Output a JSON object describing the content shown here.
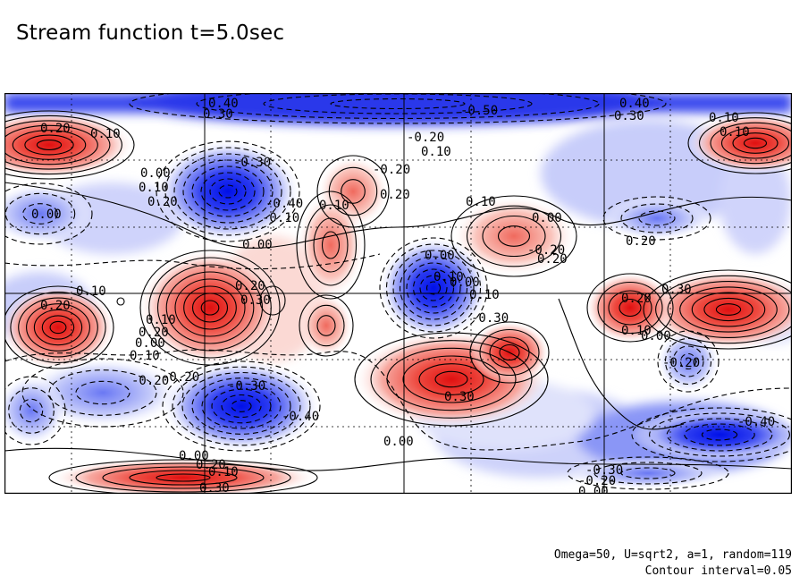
{
  "title": "Stream function t=5.0sec",
  "footer": {
    "params": "Omega=50, U=sqrt2, a=1, random=119",
    "interval": "Contour interval=0.05"
  },
  "colors": {
    "positive": "#e8201c",
    "negative": "#1020e0",
    "background": "#ffffff",
    "grid": "#000000"
  },
  "contour_labels": [
    "0.40",
    "0.30",
    "-0.50",
    "0.40",
    "0.30",
    "0.20",
    "0.10",
    "0.10",
    "0.10",
    "-0.20",
    "0.10",
    "0.00",
    "0.10",
    "0.20",
    "-0.30",
    "0.10",
    "-0.20",
    "0.20",
    "0.10",
    "0.00",
    "0.00",
    "-0.40",
    "-0.10",
    "0.00",
    "0.00",
    "0.20",
    "-0.20",
    "0.20",
    "0.10",
    "0.00",
    "0.10",
    "0.10",
    "0.20",
    "0.20",
    "0.30",
    "-0.30",
    "0.30",
    "0.20",
    "0.10",
    "0.00",
    "-0.20",
    "0.10",
    "0.20",
    "-0.20",
    "0.00",
    "0.10",
    "-0.20",
    "-0.30",
    "-0.40",
    "0.30",
    "0.00",
    "-0.40",
    "0.00",
    "0.20",
    "0.10",
    "0.30",
    "-0.30",
    "-0.20",
    "0.00"
  ]
}
